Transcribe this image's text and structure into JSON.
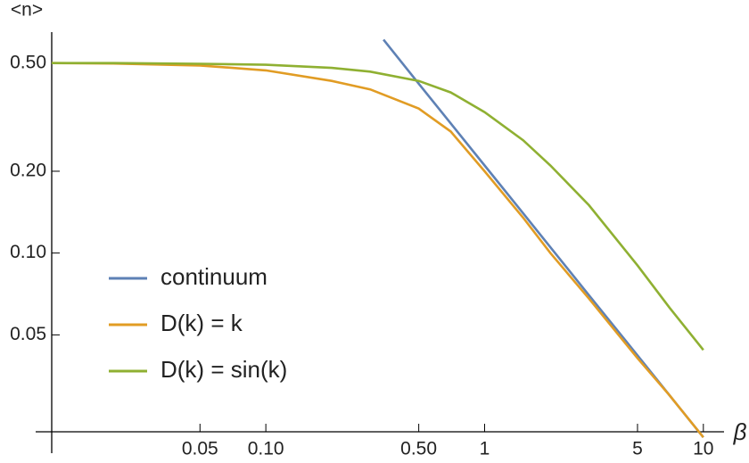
{
  "chart_data": {
    "type": "line",
    "y_label": "<n>",
    "x_label": "β",
    "log_x": true,
    "log_y": true,
    "legend": "bottom-left",
    "xlim": [
      0.0105,
      12.2
    ],
    "ylim": [
      0.022,
      0.65
    ],
    "xticks": [
      0.05,
      {
        "value": 0.1,
        "label": "0.10"
      },
      {
        "value": 0.5,
        "label": "0.50"
      },
      1,
      5,
      10
    ],
    "yticks": [
      0.05,
      {
        "value": 0.1,
        "label": "0.10"
      },
      {
        "value": 0.2,
        "label": "0.20"
      },
      {
        "value": 0.5,
        "label": "0.50"
      }
    ],
    "series": [
      {
        "name": "continuum",
        "color": "#5e81b5",
        "x": [
          0.345,
          0.5,
          0.7,
          1,
          1.5,
          2,
          3,
          5,
          7,
          10
        ],
        "values": [
          0.61,
          0.42,
          0.3,
          0.21,
          0.14,
          0.105,
          0.07,
          0.042,
          0.03,
          0.021
        ]
      },
      {
        "name": "D(k) = k",
        "color": "#e19c24",
        "x": [
          0.0105,
          0.02,
          0.05,
          0.1,
          0.2,
          0.3,
          0.5,
          0.7,
          1,
          1.5,
          2,
          3,
          5,
          7,
          10
        ],
        "values": [
          0.5,
          0.498,
          0.49,
          0.47,
          0.43,
          0.4,
          0.34,
          0.28,
          0.2,
          0.135,
          0.1,
          0.068,
          0.041,
          0.03,
          0.021
        ]
      },
      {
        "name": "D(k) = sin(k)",
        "color": "#8fb032",
        "x": [
          0.0105,
          0.02,
          0.05,
          0.1,
          0.2,
          0.3,
          0.5,
          0.7,
          1,
          1.5,
          2,
          3,
          5,
          7,
          10
        ],
        "values": [
          0.5,
          0.5,
          0.497,
          0.493,
          0.48,
          0.465,
          0.43,
          0.39,
          0.33,
          0.26,
          0.21,
          0.15,
          0.09,
          0.063,
          0.044
        ]
      }
    ]
  }
}
